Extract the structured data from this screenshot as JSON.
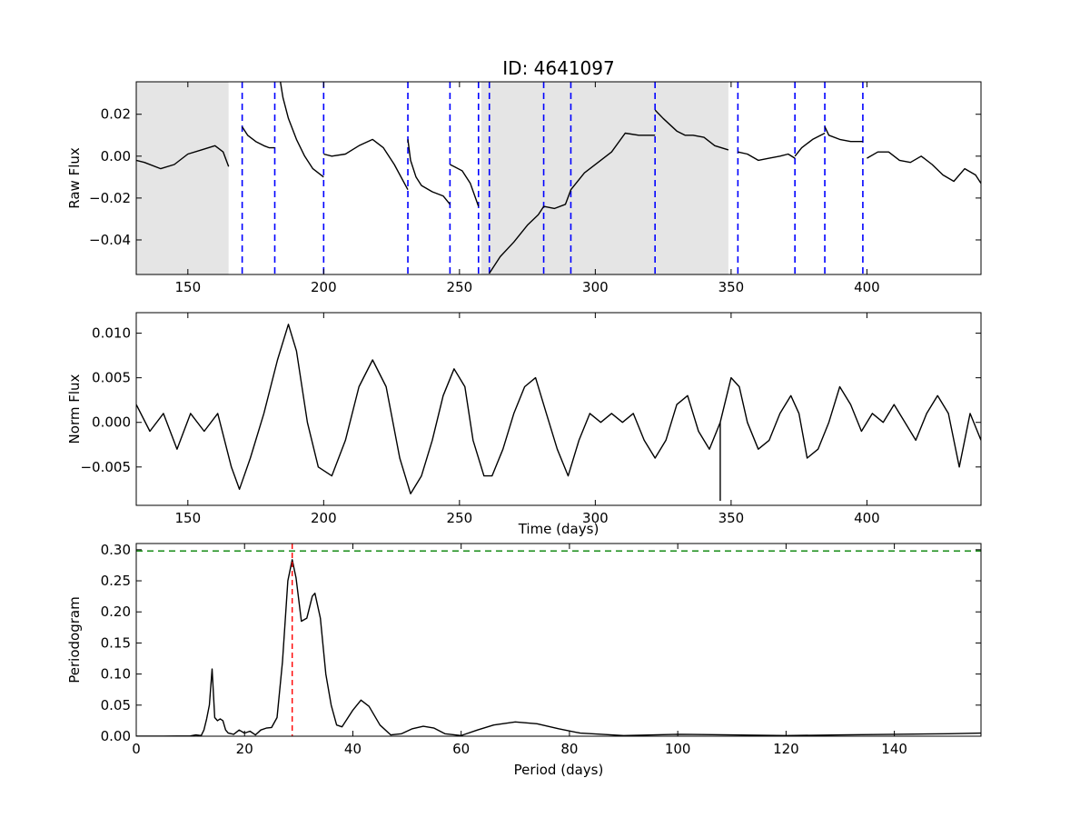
{
  "chart_data": [
    {
      "type": "line",
      "title": "ID: 4641097",
      "ylabel": "Raw Flux",
      "xlabel": "",
      "xlim": [
        131,
        442
      ],
      "ylim": [
        -0.0565,
        0.0355
      ],
      "xticks": [
        150,
        200,
        250,
        300,
        350,
        400
      ],
      "xtick_labels": [
        "150",
        "200",
        "250",
        "300",
        "350",
        "400"
      ],
      "yticks": [
        0.02,
        0.0,
        -0.02,
        -0.04
      ],
      "ytick_labels": [
        "0.02",
        "0.00",
        "−0.02",
        "−0.04"
      ],
      "grid": false,
      "shaded_regions": [
        {
          "x0": 131,
          "x1": 165,
          "color": "#e5e5e5"
        },
        {
          "x0": 258,
          "x1": 349,
          "color": "#e5e5e5"
        }
      ],
      "vlines": {
        "color": "#0000ff",
        "style": "dashed",
        "x": [
          170,
          182,
          200,
          231,
          246.5,
          257,
          261,
          281,
          291,
          322,
          352.5,
          373.5,
          384.5,
          398.5
        ]
      },
      "segments": [
        {
          "x": [
            131,
            134,
            140,
            145,
            150,
            155,
            160,
            163,
            165
          ],
          "y": [
            -0.002,
            -0.003,
            -0.006,
            -0.004,
            0.001,
            0.003,
            0.005,
            0.002,
            -0.005
          ]
        },
        {
          "x": [
            170,
            172,
            175,
            178,
            180,
            182
          ],
          "y": [
            0.014,
            0.01,
            0.007,
            0.005,
            0.004,
            0.004
          ]
        },
        {
          "x": [
            184,
            185,
            187,
            190,
            193,
            196,
            200
          ],
          "y": [
            0.036,
            0.028,
            0.018,
            0.008,
            0.0,
            -0.006,
            -0.01
          ]
        },
        {
          "x": [
            200,
            203,
            208,
            213,
            218,
            222,
            226,
            231
          ],
          "y": [
            0.001,
            0.0,
            0.001,
            0.005,
            0.008,
            0.004,
            -0.004,
            -0.016
          ]
        },
        {
          "x": [
            231,
            232,
            234,
            236,
            240,
            244,
            246.5
          ],
          "y": [
            0.008,
            -0.002,
            -0.01,
            -0.014,
            -0.017,
            -0.019,
            -0.023
          ]
        },
        {
          "x": [
            246.5,
            248,
            251,
            254,
            257
          ],
          "y": [
            -0.004,
            -0.005,
            -0.007,
            -0.013,
            -0.024
          ]
        },
        {
          "x": [
            261,
            265,
            270,
            275,
            279,
            281,
            285,
            289,
            291,
            296,
            301,
            306,
            311,
            316,
            322
          ],
          "y": [
            -0.056,
            -0.048,
            -0.041,
            -0.033,
            -0.028,
            -0.024,
            -0.025,
            -0.023,
            -0.016,
            -0.008,
            -0.003,
            0.002,
            0.011,
            0.01,
            0.01
          ]
        },
        {
          "x": [
            322,
            325,
            330,
            333,
            336,
            340,
            344,
            349
          ],
          "y": [
            0.022,
            0.018,
            0.012,
            0.01,
            0.01,
            0.009,
            0.005,
            0.003
          ]
        },
        {
          "x": [
            352.5,
            356,
            360,
            364,
            368,
            371,
            373.5
          ],
          "y": [
            0.002,
            0.001,
            -0.002,
            -0.001,
            0.0,
            0.001,
            -0.001
          ]
        },
        {
          "x": [
            373.5,
            376,
            380,
            384.5
          ],
          "y": [
            0.0,
            0.004,
            0.008,
            0.011
          ]
        },
        {
          "x": [
            384.5,
            386,
            390,
            394,
            398.5
          ],
          "y": [
            0.014,
            0.01,
            0.008,
            0.007,
            0.007
          ]
        },
        {
          "x": [
            400,
            404,
            408,
            412,
            416,
            420,
            424,
            428,
            432,
            436,
            440,
            442
          ],
          "y": [
            -0.001,
            0.002,
            0.002,
            -0.002,
            -0.003,
            0.0,
            -0.004,
            -0.009,
            -0.012,
            -0.006,
            -0.009,
            -0.013
          ]
        }
      ]
    },
    {
      "type": "line",
      "title": "",
      "ylabel": "Norm Flux",
      "xlabel": "Time (days)",
      "xlim": [
        131,
        442
      ],
      "ylim": [
        -0.0093,
        0.0123
      ],
      "xticks": [
        150,
        200,
        250,
        300,
        350,
        400
      ],
      "xtick_labels": [
        "150",
        "200",
        "250",
        "300",
        "350",
        "400"
      ],
      "yticks": [
        0.01,
        0.005,
        0.0,
        -0.005
      ],
      "ytick_labels": [
        "0.010",
        "0.005",
        "0.000",
        "−0.005"
      ],
      "grid": false,
      "x": [
        131,
        136,
        141,
        146,
        151,
        156,
        161,
        166,
        169,
        173,
        178,
        183,
        187,
        190,
        194,
        198,
        203,
        208,
        213,
        218,
        223,
        228,
        232,
        236,
        240,
        244,
        248,
        252,
        255,
        259,
        262,
        266,
        270,
        274,
        278,
        282,
        286,
        290,
        294,
        298,
        302,
        306,
        310,
        314,
        318,
        322,
        326,
        330,
        334,
        338,
        342,
        346,
        350,
        353,
        356,
        360,
        364,
        368,
        372,
        375,
        378,
        382,
        386,
        390,
        394,
        398,
        402,
        406,
        410,
        414,
        418,
        422,
        426,
        430,
        434,
        438,
        442
      ],
      "y": [
        0.002,
        -0.001,
        0.001,
        -0.003,
        0.001,
        -0.001,
        0.001,
        -0.005,
        -0.0075,
        -0.004,
        0.001,
        0.007,
        0.011,
        0.008,
        0.0,
        -0.005,
        -0.006,
        -0.002,
        0.004,
        0.007,
        0.004,
        -0.004,
        -0.008,
        -0.006,
        -0.002,
        0.003,
        0.006,
        0.004,
        -0.002,
        -0.006,
        -0.006,
        -0.003,
        0.001,
        0.004,
        0.005,
        0.001,
        -0.003,
        -0.006,
        -0.002,
        0.001,
        0.0,
        0.001,
        0.0,
        0.001,
        -0.002,
        -0.004,
        -0.002,
        0.002,
        0.003,
        -0.001,
        -0.003,
        0.0,
        0.005,
        0.004,
        0.0,
        -0.003,
        -0.002,
        0.001,
        0.003,
        0.001,
        -0.004,
        -0.003,
        0.0,
        0.004,
        0.002,
        -0.001,
        0.001,
        0.0,
        0.002,
        0.0,
        -0.002,
        0.001,
        0.003,
        0.001,
        -0.005,
        0.001,
        -0.002
      ],
      "spikes": [
        {
          "x": 346,
          "y": -0.0088
        }
      ]
    },
    {
      "type": "line",
      "title": "",
      "ylabel": "Periodogram",
      "xlabel": "Period (days)",
      "xlim": [
        0,
        156
      ],
      "ylim": [
        0,
        0.31
      ],
      "xticks": [
        0,
        20,
        40,
        60,
        80,
        100,
        120,
        140
      ],
      "xtick_labels": [
        "0",
        "20",
        "40",
        "60",
        "80",
        "100",
        "120",
        "140"
      ],
      "yticks": [
        0.0,
        0.05,
        0.1,
        0.15,
        0.2,
        0.25,
        0.3
      ],
      "ytick_labels": [
        "0.00",
        "0.05",
        "0.10",
        "0.15",
        "0.20",
        "0.25",
        "0.30"
      ],
      "grid": false,
      "hline": {
        "y": 0.298,
        "color": "#008000",
        "style": "dashed"
      },
      "vline": {
        "x": 28.8,
        "color": "#ff0000",
        "style": "dashed"
      },
      "x": [
        0,
        5,
        10,
        11,
        12,
        12.5,
        13,
        13.5,
        14,
        14.5,
        15,
        15.5,
        16,
        16.5,
        17,
        18,
        19,
        20,
        21,
        22,
        23,
        24,
        25,
        26,
        27,
        28,
        28.8,
        29.5,
        30.5,
        31.5,
        32.5,
        33,
        34,
        35,
        36,
        37,
        38,
        40,
        41.5,
        43,
        45,
        47,
        49,
        51,
        53,
        55,
        57,
        60,
        63,
        66,
        70,
        74,
        78,
        82,
        90,
        100,
        110,
        120,
        130,
        140,
        150,
        156
      ],
      "y": [
        0.0,
        0.0,
        0.0005,
        0.002,
        0.001,
        0.01,
        0.028,
        0.05,
        0.108,
        0.03,
        0.025,
        0.028,
        0.025,
        0.01,
        0.005,
        0.003,
        0.01,
        0.005,
        0.008,
        0.002,
        0.01,
        0.013,
        0.014,
        0.03,
        0.12,
        0.25,
        0.284,
        0.255,
        0.185,
        0.19,
        0.225,
        0.23,
        0.19,
        0.1,
        0.05,
        0.018,
        0.015,
        0.042,
        0.058,
        0.048,
        0.018,
        0.002,
        0.004,
        0.012,
        0.016,
        0.013,
        0.004,
        0.001,
        0.01,
        0.018,
        0.023,
        0.02,
        0.012,
        0.005,
        0.001,
        0.003,
        0.002,
        0.001,
        0.002,
        0.003,
        0.004,
        0.005
      ]
    }
  ]
}
